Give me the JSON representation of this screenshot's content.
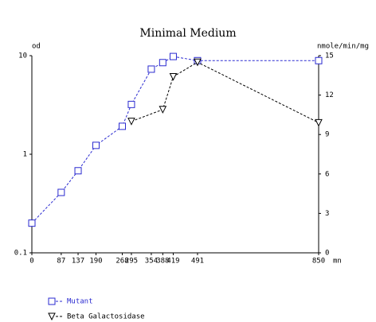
{
  "chart_data": {
    "type": "line",
    "title": "Minimal Medium",
    "y_label": "od",
    "y2_label": "nmole/min/mg",
    "x_label": "mn",
    "xlim": [
      0,
      850
    ],
    "xticks": [
      0,
      87,
      137,
      190,
      268,
      295,
      354,
      388,
      419,
      491,
      850
    ],
    "ylim": [
      0.1,
      10
    ],
    "yticks": [
      0.1,
      1,
      10
    ],
    "log_y": true,
    "y2lim": [
      0,
      15
    ],
    "y2ticks": [
      0,
      3,
      6,
      9,
      12,
      15
    ],
    "series": [
      {
        "name": "Mutant",
        "color": "#2a2ad0",
        "marker": "square",
        "x": [
          0,
          87,
          137,
          190,
          268,
          295,
          354,
          388,
          419,
          491,
          850
        ],
        "values": [
          0.2,
          0.41,
          0.68,
          1.23,
          1.92,
          3.2,
          7.3,
          8.5,
          9.8,
          8.9,
          8.9
        ]
      },
      {
        "name": "Beta Galactosidase",
        "color": "#000000",
        "marker": "triangle",
        "axis": "y2",
        "x": [
          295,
          388,
          419,
          491,
          850
        ],
        "values": [
          10.0,
          10.9,
          13.4,
          14.5,
          9.9
        ]
      }
    ]
  }
}
